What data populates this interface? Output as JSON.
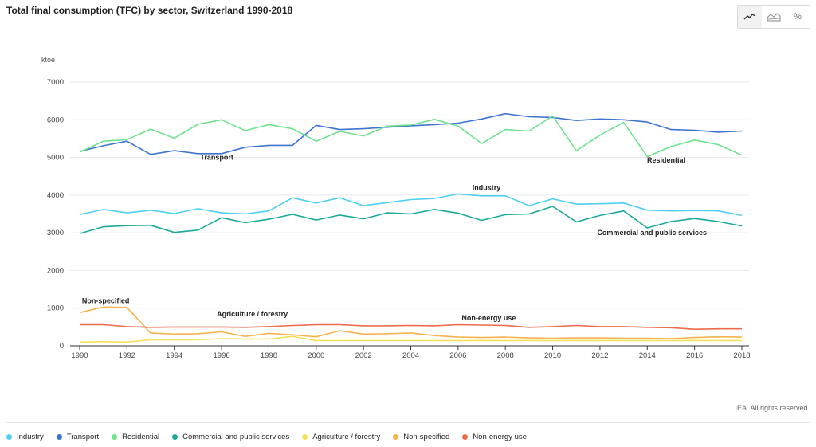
{
  "page": {
    "title": "Total final consumption (TFC) by sector, Switzerland 1990-2018",
    "credit": "IEA. All rights reserved.",
    "toolbar": [
      {
        "icon": "line-chart-icon",
        "label": ""
      },
      {
        "icon": "area-chart-icon",
        "label": ""
      },
      {
        "icon": "percent-icon",
        "label": "%"
      }
    ]
  },
  "chart_data": {
    "type": "line",
    "title": "Total final consumption (TFC) by sector, Switzerland 1990-2018",
    "ylabel": "ktoe",
    "xlabel": "",
    "ylim": [
      0,
      7000
    ],
    "xlim": [
      1990,
      2018
    ],
    "yticks": [
      0,
      1000,
      2000,
      3000,
      4000,
      5000,
      6000,
      7000
    ],
    "xticks": [
      1990,
      1992,
      1994,
      1996,
      1998,
      2000,
      2002,
      2004,
      2006,
      2008,
      2010,
      2012,
      2014,
      2016,
      2018
    ],
    "grid": "horizontal",
    "legend_position": "bottom",
    "x": [
      1990,
      1991,
      1992,
      1993,
      1994,
      1995,
      1996,
      1997,
      1998,
      1999,
      2000,
      2001,
      2002,
      2003,
      2004,
      2005,
      2006,
      2007,
      2008,
      2009,
      2010,
      2011,
      2012,
      2013,
      2014,
      2015,
      2016,
      2017,
      2018
    ],
    "series": [
      {
        "name": "Industry",
        "color": "#4fd0f0",
        "label": "Industry",
        "label_year": 2007.2,
        "label_value": 4130,
        "values": [
          3480,
          3620,
          3530,
          3600,
          3510,
          3640,
          3530,
          3500,
          3580,
          3930,
          3790,
          3930,
          3720,
          3800,
          3880,
          3910,
          4030,
          3980,
          3980,
          3720,
          3900,
          3760,
          3770,
          3790,
          3600,
          3580,
          3590,
          3580,
          3460
        ]
      },
      {
        "name": "Transport",
        "color": "#3f74d1",
        "label": "Transport",
        "label_year": 1995.8,
        "label_value": 4940,
        "values": [
          5160,
          5310,
          5430,
          5080,
          5180,
          5100,
          5100,
          5270,
          5320,
          5320,
          5850,
          5740,
          5760,
          5800,
          5840,
          5870,
          5910,
          6020,
          6160,
          6080,
          6060,
          5980,
          6020,
          6000,
          5940,
          5740,
          5720,
          5670,
          5700
        ]
      },
      {
        "name": "Residential",
        "color": "#6ee28e",
        "label": "Residential",
        "label_year": 2014.8,
        "label_value": 4860,
        "values": [
          5140,
          5430,
          5470,
          5750,
          5510,
          5880,
          6000,
          5710,
          5870,
          5760,
          5430,
          5690,
          5570,
          5830,
          5860,
          6010,
          5830,
          5370,
          5740,
          5700,
          6100,
          5180,
          5590,
          5930,
          5020,
          5290,
          5460,
          5340,
          5060
        ]
      },
      {
        "name": "Commercial and public services",
        "color": "#1aa999",
        "label": "Commercial and public services",
        "label_year": 2014.2,
        "label_value": 2940,
        "values": [
          2980,
          3160,
          3190,
          3200,
          3010,
          3070,
          3400,
          3270,
          3360,
          3490,
          3340,
          3470,
          3370,
          3530,
          3500,
          3620,
          3520,
          3330,
          3480,
          3500,
          3700,
          3290,
          3460,
          3580,
          3130,
          3300,
          3380,
          3300,
          3180
        ]
      },
      {
        "name": "Agriculture / forestry",
        "color": "#f2e15b",
        "label": "Agriculture / forestry",
        "label_year": 1997.3,
        "label_value": 780,
        "values": [
          100,
          110,
          100,
          160,
          160,
          160,
          190,
          180,
          180,
          250,
          140,
          140,
          140,
          140,
          140,
          140,
          140,
          140,
          140,
          140,
          140,
          140,
          140,
          140,
          140,
          140,
          140,
          140,
          140
        ]
      },
      {
        "name": "Non-specified",
        "color": "#f7b34e",
        "label": "Non-specified",
        "label_year": 1991.1,
        "label_value": 1130,
        "values": [
          880,
          1030,
          1020,
          340,
          310,
          320,
          370,
          250,
          330,
          290,
          240,
          400,
          310,
          320,
          340,
          270,
          230,
          220,
          230,
          210,
          200,
          210,
          210,
          200,
          200,
          190,
          220,
          240,
          230
        ]
      },
      {
        "name": "Non-energy use",
        "color": "#ed6b4d",
        "label": "Non-energy use",
        "label_year": 2007.3,
        "label_value": 680,
        "values": [
          560,
          560,
          510,
          490,
          500,
          500,
          500,
          490,
          510,
          540,
          560,
          560,
          530,
          530,
          540,
          530,
          560,
          550,
          540,
          490,
          510,
          540,
          510,
          510,
          490,
          480,
          440,
          450,
          450
        ]
      }
    ]
  }
}
